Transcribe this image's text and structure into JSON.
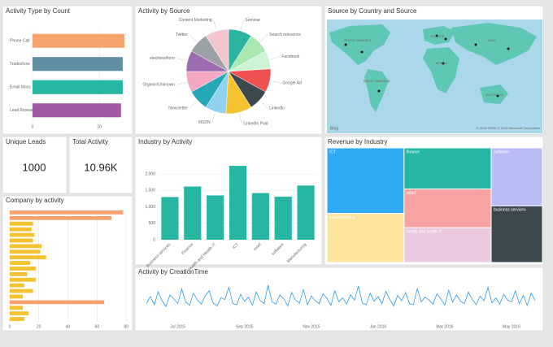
{
  "chart_data": [
    {
      "type": "hbar",
      "title": "Activity Type by Count",
      "categories": [
        "Phone Call",
        "Tradeshow",
        "Email Mass",
        "Lead Research"
      ],
      "values": [
        27.5,
        27,
        27,
        26.5
      ],
      "colors": [
        "#f6a36e",
        "#5f8ea3",
        "#27b6a2",
        "#a05aa6"
      ],
      "xlim": [
        0,
        28
      ],
      "xticks": [
        0,
        20
      ]
    },
    {
      "type": "pie",
      "title": "Activity by Source",
      "categories": [
        "Seminar",
        "Search relevance",
        "Facebook",
        "Google Ad",
        "LinkedIn",
        "LinkedIn Paid",
        "MSDN",
        "Newsletter",
        "Organic/Unknown",
        "elections/form",
        "Twitter",
        "Content Marketing"
      ],
      "values": [
        9,
        8,
        7,
        9,
        8,
        10,
        8,
        8,
        8,
        8,
        8,
        9
      ],
      "colors": [
        "#2bb5a0",
        "#a9e8b0",
        "#cdf4d2",
        "#ef5050",
        "#3c484e",
        "#f5c232",
        "#8fd3f0",
        "#27a8b8",
        "#f3a7c0",
        "#9c6bb0",
        "#9aa2a6",
        "#f3c6cf"
      ]
    },
    {
      "type": "hbar",
      "title": "Company by activity",
      "values": [
        78,
        70,
        16,
        15,
        17,
        16,
        22,
        21,
        25,
        14,
        18,
        12,
        18,
        10,
        16,
        9,
        65,
        9,
        13,
        10
      ],
      "colors": [
        "#f6a36e",
        "#f6a36e",
        "#f5c232",
        "#f5c232",
        "#f5c232",
        "#f5c232",
        "#f5c232",
        "#f5c232",
        "#f5c232",
        "#f5c232",
        "#f5c232",
        "#f5c232",
        "#f5c232",
        "#f5c232",
        "#f5c232",
        "#f5c232",
        "#f6a36e",
        "#f5c232",
        "#f5c232",
        "#f5c232"
      ],
      "xlim": [
        0,
        80
      ],
      "xticks": [
        0,
        20,
        40,
        60,
        80
      ]
    },
    {
      "type": "bar",
      "title": "Industry by Activity",
      "categories": [
        "Business services",
        "Finance",
        "Health and Health IT",
        "ICT",
        "retail",
        "software",
        "Manufacturing"
      ],
      "values": [
        1300,
        1620,
        1350,
        2250,
        1420,
        1310,
        1650
      ],
      "color": "#27b6a2",
      "ylim": [
        0,
        2400
      ],
      "yticks": [
        0,
        500,
        {
          "value": 1000,
          "label": "1,000"
        },
        {
          "value": 1500,
          "label": "1,500"
        },
        {
          "value": 2000,
          "label": "2,000"
        }
      ]
    },
    {
      "type": "treemap",
      "title": "Revenue by Industry",
      "categories": [
        "ICT",
        "manufacturing",
        "finance",
        "retail",
        "health and health IT",
        "software",
        "business services"
      ],
      "values": [
        7.5,
        5.6,
        5.3,
        5.0,
        4.5,
        4.4,
        4.3
      ],
      "colors": [
        "#2eaaf2",
        "#fbe39a",
        "#27b6a2",
        "#f7a3a3",
        "#e9c8e0",
        "#b9bdf4",
        "#3c484e"
      ]
    },
    {
      "type": "line",
      "title": "Activity by CreationTime",
      "color": "#2e9be6",
      "values": [
        30,
        42,
        28,
        50,
        35,
        25,
        45,
        38,
        30,
        55,
        33,
        27,
        48,
        36,
        29,
        44,
        52,
        31,
        26,
        40,
        37,
        58,
        30,
        28,
        46,
        34,
        41,
        27,
        50,
        35,
        30,
        62,
        33,
        29,
        45,
        38,
        26,
        49,
        36,
        31,
        54,
        28,
        43,
        35,
        30,
        47,
        39,
        27,
        52,
        33,
        40,
        29,
        45,
        36,
        60,
        31,
        28,
        48,
        34,
        42,
        30,
        51,
        37,
        26,
        44,
        35,
        49,
        30,
        28,
        56,
        33,
        41,
        36,
        29,
        47,
        38,
        27,
        53,
        32,
        45,
        34,
        30,
        50,
        37,
        28,
        43,
        35,
        58,
        31,
        40,
        29,
        46,
        36,
        33,
        52,
        30,
        44,
        27,
        48,
        35
      ],
      "xlim": [
        0,
        99
      ],
      "ylim": [
        0,
        70
      ],
      "xticks": [
        {
          "value": 8,
          "label": "Jul 2015"
        },
        {
          "value": 25,
          "label": "Sep 2015"
        },
        {
          "value": 42,
          "label": "Nov 2015"
        },
        {
          "value": 59,
          "label": "Jan 2016"
        },
        {
          "value": 76,
          "label": "Mar 2016"
        },
        {
          "value": 93,
          "label": "May 2016"
        }
      ]
    }
  ],
  "map": {
    "title": "Source by Country and Source",
    "labels": [
      "NORTH AMERICA",
      "SOUTH AMERICA",
      "EUROPE",
      "AFRICA",
      "ASIA",
      "AUSTRALIA"
    ],
    "logo": "Bing",
    "attribution": "© 2018 HERE © 2018 Microsoft Corporation"
  },
  "cards": [
    {
      "label": "Unique Leads",
      "value": "1000"
    },
    {
      "label": "Total Activity",
      "value": "10.96K"
    }
  ]
}
